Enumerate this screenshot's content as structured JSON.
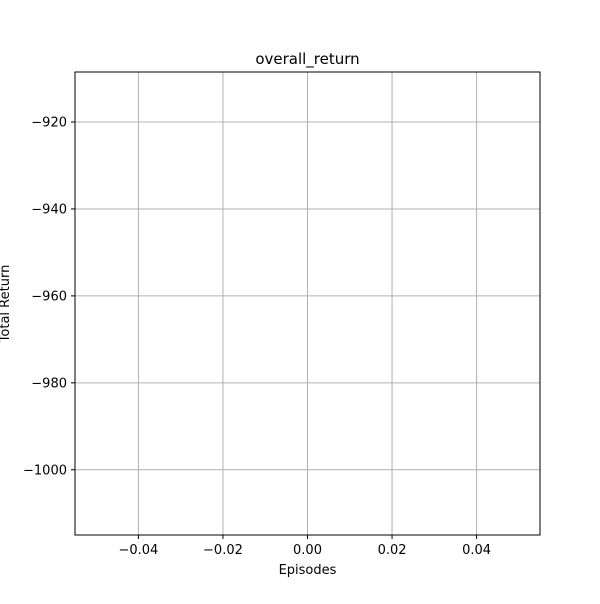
{
  "chart_data": {
    "type": "line",
    "title": "overall_return",
    "xlabel": "Episodes",
    "ylabel": "Total Return",
    "xlim": [
      -0.055,
      0.055
    ],
    "ylim": [
      -1015,
      -908.5
    ],
    "xticks": [
      -0.04,
      -0.02,
      0.0,
      0.02,
      0.04
    ],
    "xtick_labels": [
      "−0.04",
      "−0.02",
      "0.00",
      "0.02",
      "0.04"
    ],
    "yticks": [
      -920,
      -940,
      -960,
      -980,
      -1000
    ],
    "ytick_labels": [
      "−920",
      "−940",
      "−960",
      "−980",
      "−1000"
    ],
    "grid": true,
    "series": [
      {
        "x": [],
        "y": []
      }
    ],
    "colors": {
      "grid": "#b0b0b0",
      "axes": "#000000",
      "background": "#ffffff"
    }
  }
}
